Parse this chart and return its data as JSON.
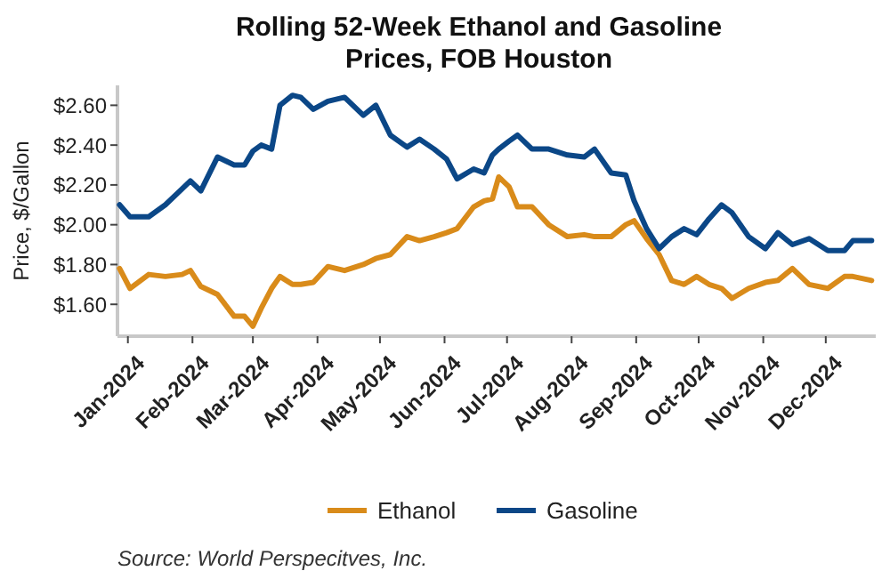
{
  "chart_data": {
    "type": "line",
    "title": "Rolling 52-Week Ethanol and Gasoline Prices, FOB Houston",
    "ylabel": "Price, $/Gallon",
    "annotations": [
      "Source: World Perspecitves, Inc."
    ],
    "x": [
      "2023-12-28",
      "2024-01-02",
      "2024-01-11",
      "2024-01-19",
      "2024-01-27",
      "2024-01-31",
      "2024-02-05",
      "2024-02-13",
      "2024-02-21",
      "2024-02-26",
      "2024-03-01",
      "2024-03-05",
      "2024-03-10",
      "2024-03-14",
      "2024-03-20",
      "2024-03-24",
      "2024-03-30",
      "2024-04-06",
      "2024-04-14",
      "2024-04-23",
      "2024-04-29",
      "2024-05-06",
      "2024-05-14",
      "2024-05-20",
      "2024-05-27",
      "2024-06-02",
      "2024-06-07",
      "2024-06-15",
      "2024-06-20",
      "2024-06-24",
      "2024-06-27",
      "2024-07-02",
      "2024-07-06",
      "2024-07-13",
      "2024-07-21",
      "2024-07-30",
      "2024-08-07",
      "2024-08-12",
      "2024-08-20",
      "2024-08-27",
      "2024-08-31",
      "2024-09-06",
      "2024-09-12",
      "2024-09-18",
      "2024-09-24",
      "2024-09-30",
      "2024-10-06",
      "2024-10-12",
      "2024-10-17",
      "2024-10-25",
      "2024-11-02",
      "2024-11-08",
      "2024-11-15",
      "2024-11-23",
      "2024-12-02",
      "2024-12-10",
      "2024-12-14",
      "2024-12-23"
    ],
    "series": [
      {
        "name": "Ethanol",
        "color": "#d98b1a",
        "values": [
          1.78,
          1.68,
          1.75,
          1.74,
          1.75,
          1.77,
          1.69,
          1.65,
          1.54,
          1.54,
          1.49,
          1.58,
          1.68,
          1.74,
          1.7,
          1.7,
          1.71,
          1.79,
          1.77,
          1.8,
          1.83,
          1.85,
          1.94,
          1.92,
          1.94,
          1.96,
          1.98,
          2.09,
          2.12,
          2.13,
          2.24,
          2.19,
          2.09,
          2.09,
          2.0,
          1.94,
          1.95,
          1.94,
          1.94,
          2.0,
          2.02,
          1.93,
          1.85,
          1.72,
          1.7,
          1.74,
          1.7,
          1.68,
          1.63,
          1.68,
          1.71,
          1.72,
          1.78,
          1.7,
          1.68,
          1.74,
          1.74,
          1.72
        ]
      },
      {
        "name": "Gasoline",
        "color": "#0b4787",
        "values": [
          2.1,
          2.04,
          2.04,
          2.1,
          2.18,
          2.22,
          2.17,
          2.34,
          2.3,
          2.3,
          2.37,
          2.4,
          2.38,
          2.6,
          2.65,
          2.64,
          2.58,
          2.62,
          2.64,
          2.55,
          2.6,
          2.45,
          2.39,
          2.43,
          2.38,
          2.33,
          2.23,
          2.28,
          2.26,
          2.35,
          2.38,
          2.42,
          2.45,
          2.38,
          2.38,
          2.35,
          2.34,
          2.38,
          2.26,
          2.25,
          2.12,
          1.98,
          1.88,
          1.94,
          1.98,
          1.95,
          2.03,
          2.1,
          2.06,
          1.94,
          1.88,
          1.96,
          1.9,
          1.93,
          1.87,
          1.87,
          1.92,
          1.92
        ]
      }
    ],
    "xlim": [
      "2023-12-27",
      "2024-12-25"
    ],
    "xticks": [
      {
        "value": "2024-01-01",
        "label": "Jan-2024"
      },
      {
        "value": "2024-02-01",
        "label": "Feb-2024"
      },
      {
        "value": "2024-03-01",
        "label": "Mar-2024"
      },
      {
        "value": "2024-04-01",
        "label": "Apr-2024"
      },
      {
        "value": "2024-05-01",
        "label": "May-2024"
      },
      {
        "value": "2024-06-01",
        "label": "Jun-2024"
      },
      {
        "value": "2024-07-01",
        "label": "Jul-2024"
      },
      {
        "value": "2024-08-01",
        "label": "Aug-2024"
      },
      {
        "value": "2024-09-01",
        "label": "Sep-2024"
      },
      {
        "value": "2024-10-01",
        "label": "Oct-2024"
      },
      {
        "value": "2024-11-01",
        "label": "Nov-2024"
      },
      {
        "value": "2024-12-01",
        "label": "Dec-2024"
      }
    ],
    "ylim": [
      1.44,
      2.7
    ],
    "yticks": [
      {
        "value": 1.6,
        "label": "$1.60"
      },
      {
        "value": 1.8,
        "label": "$1.80"
      },
      {
        "value": 2.0,
        "label": "$2.00"
      },
      {
        "value": 2.2,
        "label": "$2.20"
      },
      {
        "value": 2.4,
        "label": "$2.40"
      },
      {
        "value": 2.6,
        "label": "$2.60"
      }
    ],
    "grid": false,
    "legend": "bottom",
    "marker": "none",
    "line_style": "solid"
  }
}
